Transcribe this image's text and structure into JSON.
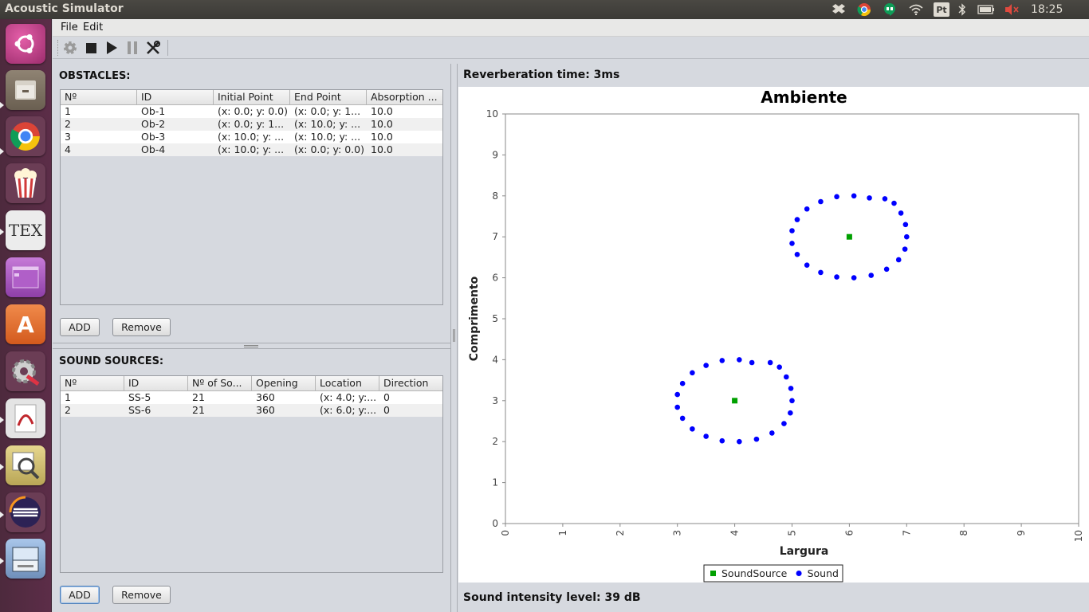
{
  "window": {
    "title": "Acoustic Simulator"
  },
  "tray": {
    "clock": "18:25"
  },
  "launcher": {
    "items": [
      {
        "name": "ubuntu-dash-icon",
        "color": "#c2458c"
      },
      {
        "name": "files-icon",
        "color": "#8a7e6b"
      },
      {
        "name": "chrome-icon",
        "color": "#6b4a58"
      },
      {
        "name": "popcorn-icon",
        "color": "#6b4a58"
      },
      {
        "name": "tex-icon",
        "color": "#e6e6e6"
      },
      {
        "name": "workspace-icon",
        "color": "#9b4fb0"
      },
      {
        "name": "software-center-icon",
        "color": "#dd6b2f"
      },
      {
        "name": "settings-icon",
        "color": "#6b4a58"
      },
      {
        "name": "pdf-viewer-icon",
        "color": "#d9d9d9"
      },
      {
        "name": "image-viewer-icon",
        "color": "#c9b86d"
      },
      {
        "name": "eclipse-icon",
        "color": "#2c2d5b"
      },
      {
        "name": "scanner-icon",
        "color": "#7a9bc4"
      }
    ]
  },
  "menubar": {
    "file": "File",
    "edit": "Edit"
  },
  "obstacles": {
    "title": "OBSTACLES:",
    "columns": [
      "Nº",
      "ID",
      "Initial Point",
      "End Point",
      "Absorption ..."
    ],
    "rows": [
      [
        "1",
        "Ob-1",
        "(x: 0.0; y: 0.0)",
        "(x: 0.0; y: 1...",
        "10.0"
      ],
      [
        "2",
        "Ob-2",
        "(x: 0.0; y: 1...",
        "(x: 10.0; y: ...",
        "10.0"
      ],
      [
        "3",
        "Ob-3",
        "(x: 10.0; y: ...",
        "(x: 10.0; y: ...",
        "10.0"
      ],
      [
        "4",
        "Ob-4",
        "(x: 10.0; y: ...",
        "(x: 0.0; y: 0.0)",
        "10.0"
      ]
    ],
    "add_label": "ADD",
    "remove_label": "Remove"
  },
  "sound_sources": {
    "title": "SOUND SOURCES:",
    "columns": [
      "Nº",
      "ID",
      "Nº of So...",
      "Opening",
      "Location",
      "Direction"
    ],
    "rows": [
      [
        "1",
        "SS-5",
        "21",
        "360",
        "(x: 4.0; y:...",
        "0"
      ],
      [
        "2",
        "SS-6",
        "21",
        "360",
        "(x: 6.0; y:...",
        "0"
      ]
    ],
    "add_label": "ADD",
    "remove_label": "Remove"
  },
  "reverberation": "Reverberation time: 3ms",
  "intensity": "Sound intensity level: 39 dB",
  "chart_data": {
    "type": "scatter",
    "title": "Ambiente",
    "xlabel": "Largura",
    "ylabel": "Comprimento",
    "xlim": [
      0,
      10
    ],
    "ylim": [
      0,
      10
    ],
    "xticks": [
      "0",
      "1",
      "2",
      "3",
      "4",
      "5",
      "6",
      "7",
      "8",
      "9",
      "10"
    ],
    "yticks": [
      "0",
      "1",
      "2",
      "3",
      "4",
      "5",
      "6",
      "7",
      "8",
      "9",
      "10"
    ],
    "grid": false,
    "legend_position": "bottom",
    "series": [
      {
        "name": "SoundSource",
        "color": "#00a000",
        "marker": "square",
        "points": [
          [
            4.0,
            3.0
          ],
          [
            6.0,
            7.0
          ]
        ]
      },
      {
        "name": "Sound",
        "color": "#0000ff",
        "marker": "circle",
        "points": [
          [
            5.0,
            3.0
          ],
          [
            4.98,
            3.3
          ],
          [
            4.9,
            3.58
          ],
          [
            4.78,
            3.82
          ],
          [
            4.62,
            3.93
          ],
          [
            4.3,
            3.93
          ],
          [
            4.08,
            4.0
          ],
          [
            3.78,
            3.98
          ],
          [
            3.5,
            3.86
          ],
          [
            3.26,
            3.68
          ],
          [
            3.09,
            3.42
          ],
          [
            3.0,
            3.15
          ],
          [
            3.0,
            2.84
          ],
          [
            3.09,
            2.57
          ],
          [
            3.26,
            2.31
          ],
          [
            3.5,
            2.13
          ],
          [
            3.78,
            2.02
          ],
          [
            4.08,
            2.0
          ],
          [
            4.38,
            2.06
          ],
          [
            4.65,
            2.21
          ],
          [
            4.86,
            2.44
          ],
          [
            4.97,
            2.7
          ],
          [
            7.0,
            7.0
          ],
          [
            6.98,
            7.3
          ],
          [
            6.9,
            7.58
          ],
          [
            6.78,
            7.82
          ],
          [
            6.62,
            7.93
          ],
          [
            6.35,
            7.95
          ],
          [
            6.08,
            8.0
          ],
          [
            5.78,
            7.98
          ],
          [
            5.5,
            7.86
          ],
          [
            5.26,
            7.68
          ],
          [
            5.09,
            7.42
          ],
          [
            5.0,
            7.15
          ],
          [
            5.0,
            6.84
          ],
          [
            5.09,
            6.57
          ],
          [
            5.26,
            6.31
          ],
          [
            5.5,
            6.13
          ],
          [
            5.78,
            6.02
          ],
          [
            6.08,
            6.0
          ],
          [
            6.38,
            6.06
          ],
          [
            6.65,
            6.21
          ],
          [
            6.86,
            6.44
          ],
          [
            6.97,
            6.7
          ]
        ]
      }
    ]
  }
}
